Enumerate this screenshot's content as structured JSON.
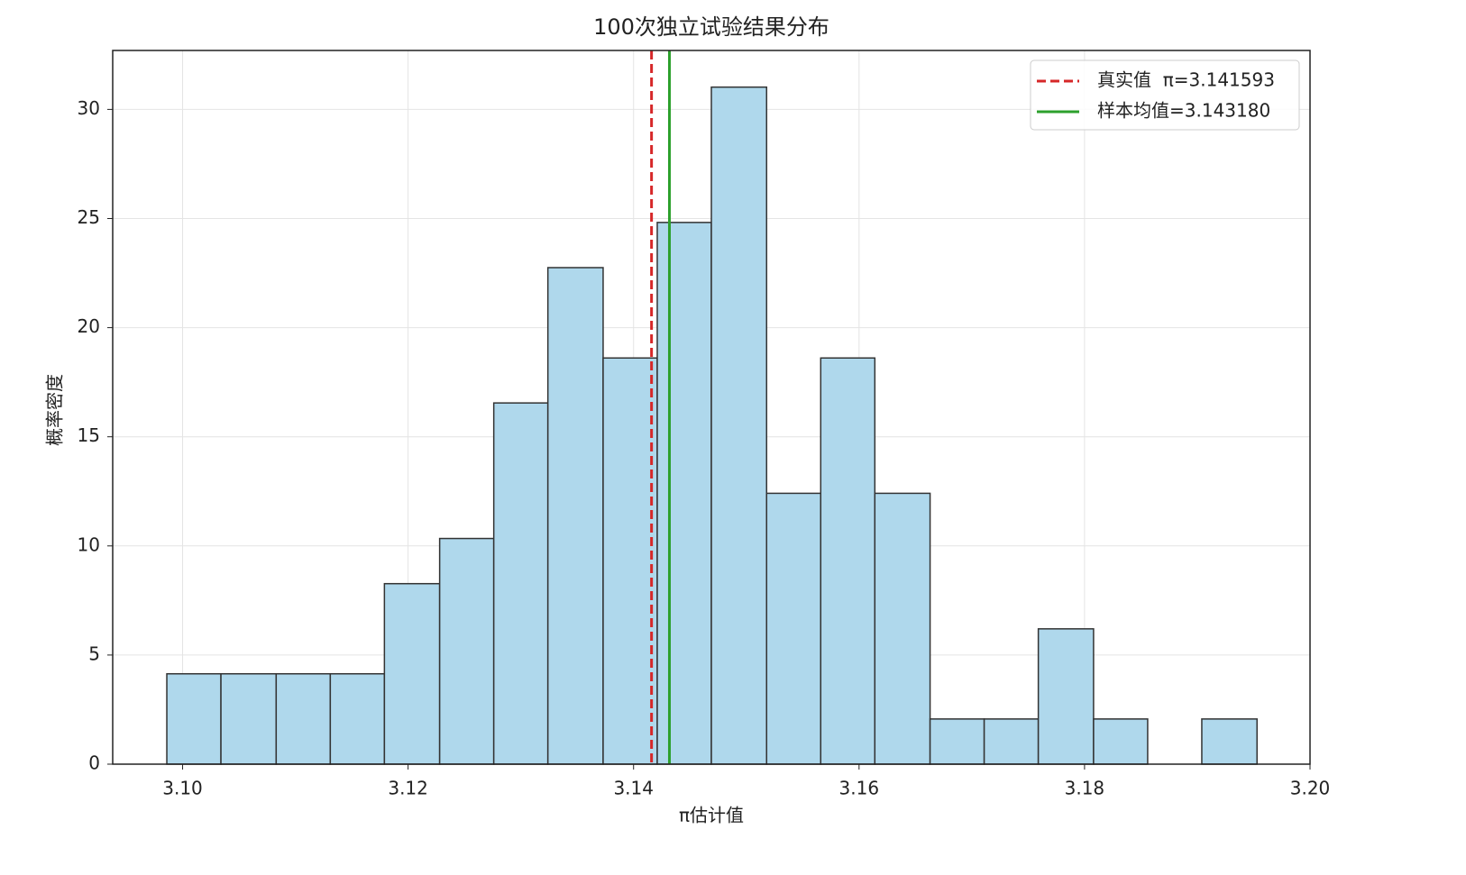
{
  "chart_data": {
    "type": "histogram",
    "title": "100次独立试验结果分布",
    "x_label": "π估计值",
    "y_label": "概率密度",
    "bins": [
      3.0986,
      3.1034,
      3.1083,
      3.1131,
      3.1179,
      3.1228,
      3.1276,
      3.1324,
      3.1373,
      3.1421,
      3.1469,
      3.1518,
      3.1566,
      3.1614,
      3.1663,
      3.1711,
      3.1759,
      3.1808,
      3.1856,
      3.1904,
      3.1953
    ],
    "values": [
      4.14,
      4.14,
      4.14,
      4.14,
      8.27,
      10.34,
      16.55,
      22.75,
      18.61,
      24.82,
      31.02,
      12.41,
      18.61,
      12.41,
      2.07,
      2.07,
      6.2,
      2.07,
      0,
      2.07
    ],
    "color": "#afd8ec",
    "edge_color": "#333333",
    "lines": [
      {
        "name": "真实值  π=3.141593",
        "value": 3.141593,
        "color": "#d62728",
        "style": "dashed"
      },
      {
        "name": "样本均值=3.143180",
        "value": 3.14318,
        "color": "#2ca02c",
        "style": "solid"
      }
    ],
    "xlim": [
      3.0938,
      3.2
    ],
    "ylim": [
      0,
      32.7
    ],
    "xticks": [
      {
        "value": 3.1,
        "label": "3.10"
      },
      3.12,
      3.14,
      3.16,
      3.18,
      {
        "value": 3.2,
        "label": "3.20"
      }
    ],
    "yticks": [
      0,
      5,
      10,
      15,
      20,
      25,
      30
    ],
    "grid": true,
    "legend": "upper right"
  }
}
